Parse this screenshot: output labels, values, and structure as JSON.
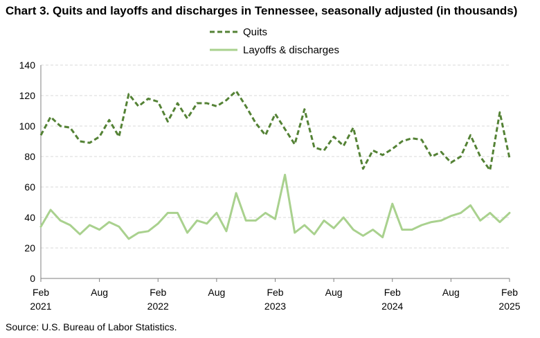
{
  "title": "Chart 3. Quits and layoffs and discharges in Tennessee, seasonally adjusted (in thousands)",
  "source": "Source: U.S. Bureau of Labor Statistics.",
  "chart_data": {
    "type": "line",
    "title": "Chart 3. Quits and layoffs and discharges in Tennessee, seasonally adjusted (in thousands)",
    "xlabel": "",
    "ylabel": "",
    "ylim": [
      0,
      140
    ],
    "yticks": [
      0,
      20,
      40,
      60,
      80,
      100,
      120,
      140
    ],
    "grid": true,
    "legend_position": "top-center",
    "x_ticks": [
      {
        "index": 0,
        "month": "Feb",
        "year": "2021"
      },
      {
        "index": 6,
        "month": "Aug",
        "year": ""
      },
      {
        "index": 12,
        "month": "Feb",
        "year": "2022"
      },
      {
        "index": 18,
        "month": "Aug",
        "year": ""
      },
      {
        "index": 24,
        "month": "Feb",
        "year": "2023"
      },
      {
        "index": 30,
        "month": "Aug",
        "year": ""
      },
      {
        "index": 36,
        "month": "Feb",
        "year": "2024"
      },
      {
        "index": 42,
        "month": "Aug",
        "year": ""
      },
      {
        "index": 48,
        "month": "Feb",
        "year": "2025"
      }
    ],
    "x": [
      "2021-02",
      "2021-03",
      "2021-04",
      "2021-05",
      "2021-06",
      "2021-07",
      "2021-08",
      "2021-09",
      "2021-10",
      "2021-11",
      "2021-12",
      "2022-01",
      "2022-02",
      "2022-03",
      "2022-04",
      "2022-05",
      "2022-06",
      "2022-07",
      "2022-08",
      "2022-09",
      "2022-10",
      "2022-11",
      "2022-12",
      "2023-01",
      "2023-02",
      "2023-03",
      "2023-04",
      "2023-05",
      "2023-06",
      "2023-07",
      "2023-08",
      "2023-09",
      "2023-10",
      "2023-11",
      "2023-12",
      "2024-01",
      "2024-02",
      "2024-03",
      "2024-04",
      "2024-05",
      "2024-06",
      "2024-07",
      "2024-08",
      "2024-09",
      "2024-10",
      "2024-11",
      "2024-12",
      "2025-01",
      "2025-02"
    ],
    "series": [
      {
        "name": "Quits",
        "color": "#548235",
        "style": "dashed",
        "values": [
          94,
          106,
          100,
          99,
          90,
          89,
          93,
          104,
          93,
          121,
          113,
          118,
          116,
          103,
          115,
          105,
          115,
          115,
          113,
          117,
          123,
          113,
          102,
          94,
          108,
          98,
          88,
          111,
          86,
          84,
          93,
          87,
          99,
          72,
          84,
          81,
          85,
          90,
          92,
          91,
          80,
          83,
          76,
          80,
          94,
          80,
          71,
          109,
          79
        ]
      },
      {
        "name": "Layoffs & discharges",
        "color": "#a9d18e",
        "style": "solid",
        "values": [
          34,
          45,
          38,
          35,
          29,
          35,
          32,
          37,
          34,
          26,
          30,
          31,
          36,
          43,
          43,
          30,
          38,
          36,
          43,
          31,
          56,
          38,
          38,
          43,
          39,
          68,
          30,
          35,
          29,
          38,
          33,
          40,
          32,
          28,
          32,
          27,
          49,
          32,
          32,
          35,
          37,
          38,
          41,
          43,
          48,
          38,
          43,
          37,
          43
        ]
      }
    ]
  }
}
